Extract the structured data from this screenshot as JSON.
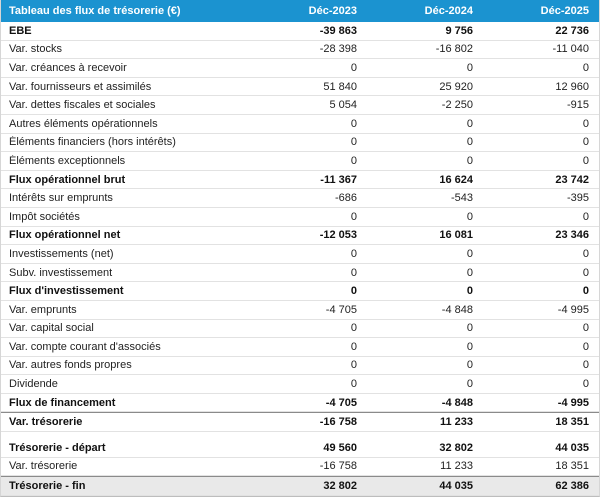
{
  "chart_data": {
    "type": "table",
    "title": "Tableau des flux de trésorerie (€)",
    "columns": [
      "Déc-2023",
      "Déc-2024",
      "Déc-2025"
    ],
    "rows": [
      {
        "label": "EBE",
        "values": [
          -39863,
          9756,
          22736
        ],
        "bold": true
      },
      {
        "label": "Var. stocks",
        "values": [
          -28398,
          -16802,
          -11040
        ]
      },
      {
        "label": "Var. créances à recevoir",
        "values": [
          0,
          0,
          0
        ]
      },
      {
        "label": "Var. fournisseurs et assimilés",
        "values": [
          51840,
          25920,
          12960
        ]
      },
      {
        "label": "Var. dettes fiscales et sociales",
        "values": [
          5054,
          -2250,
          -915
        ]
      },
      {
        "label": "Autres éléments opérationnels",
        "values": [
          0,
          0,
          0
        ]
      },
      {
        "label": "Éléments financiers (hors intérêts)",
        "values": [
          0,
          0,
          0
        ]
      },
      {
        "label": "Éléments exceptionnels",
        "values": [
          0,
          0,
          0
        ]
      },
      {
        "label": "Flux opérationnel brut",
        "values": [
          -11367,
          16624,
          23742
        ],
        "bold": true
      },
      {
        "label": "Intérêts sur emprunts",
        "values": [
          -686,
          -543,
          -395
        ]
      },
      {
        "label": "Impôt sociétés",
        "values": [
          0,
          0,
          0
        ]
      },
      {
        "label": "Flux opérationnel net",
        "values": [
          -12053,
          16081,
          23346
        ],
        "bold": true
      },
      {
        "label": "Investissements (net)",
        "values": [
          0,
          0,
          0
        ]
      },
      {
        "label": "Subv. investissement",
        "values": [
          0,
          0,
          0
        ]
      },
      {
        "label": "Flux d'investissement",
        "values": [
          0,
          0,
          0
        ],
        "bold": true
      },
      {
        "label": "Var. emprunts",
        "values": [
          -4705,
          -4848,
          -4995
        ]
      },
      {
        "label": "Var. capital social",
        "values": [
          0,
          0,
          0
        ]
      },
      {
        "label": "Var. compte courant d'associés",
        "values": [
          0,
          0,
          0
        ]
      },
      {
        "label": "Var. autres fonds propres",
        "values": [
          0,
          0,
          0
        ]
      },
      {
        "label": "Dividende",
        "values": [
          0,
          0,
          0
        ]
      },
      {
        "label": "Flux de financement",
        "values": [
          -4705,
          -4848,
          -4995
        ],
        "bold": true
      },
      {
        "label": "Var. trésorerie",
        "values": [
          -16758,
          11233,
          18351
        ],
        "bold": true,
        "topline": true
      },
      {
        "spacer": true
      },
      {
        "label": "Trésorerie - départ",
        "values": [
          49560,
          32802,
          44035
        ],
        "bold": true
      },
      {
        "label": "Var. trésorerie",
        "values": [
          -16758,
          11233,
          18351
        ]
      },
      {
        "label": "Trésorerie - fin",
        "values": [
          32802,
          44035,
          62386
        ],
        "bold": true,
        "highlight": true,
        "topline": true
      }
    ]
  },
  "colors": {
    "header_bg": "#1b93d0",
    "header_text": "#ffffff",
    "row_border": "#e2e2e2",
    "section_line": "#8a8a8a",
    "highlight_bg": "#e9e9e9"
  }
}
